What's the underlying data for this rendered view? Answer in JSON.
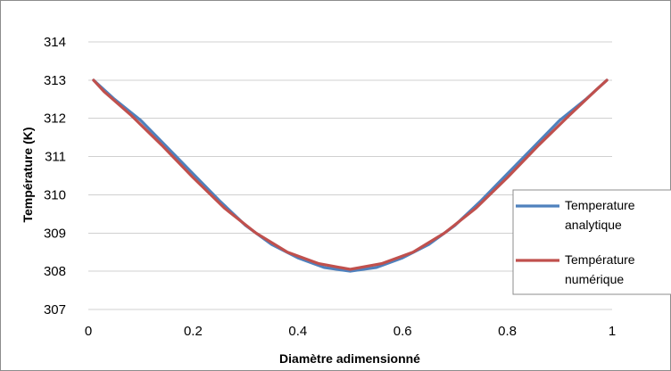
{
  "chart_data": {
    "type": "line",
    "title": "",
    "xlabel": "Diamètre adimensionné",
    "ylabel": "Température (K)",
    "xlim": [
      0,
      1
    ],
    "ylim": [
      307,
      314
    ],
    "xticks": [
      "0",
      "0.2",
      "0.4",
      "0.6",
      "0.8",
      "1"
    ],
    "yticks": [
      "307",
      "308",
      "309",
      "310",
      "311",
      "312",
      "313",
      "314"
    ],
    "grid": true,
    "legend_position": "right",
    "series": [
      {
        "name_lines": [
          "Temperature",
          "analytique"
        ],
        "color": "#4f81bd",
        "x": [
          0.01,
          0.05,
          0.1,
          0.15,
          0.2,
          0.25,
          0.3,
          0.35,
          0.4,
          0.45,
          0.5,
          0.55,
          0.6,
          0.65,
          0.7,
          0.75,
          0.8,
          0.85,
          0.9,
          0.95,
          0.99
        ],
        "y": [
          313.0,
          312.5,
          311.95,
          311.25,
          310.55,
          309.85,
          309.2,
          308.7,
          308.35,
          308.1,
          308.0,
          308.1,
          308.35,
          308.7,
          309.2,
          309.85,
          310.55,
          311.25,
          311.95,
          312.5,
          313.0
        ]
      },
      {
        "name_lines": [
          "Température",
          "numérique"
        ],
        "color": "#c0504d",
        "x": [
          0.01,
          0.03,
          0.08,
          0.14,
          0.2,
          0.26,
          0.32,
          0.38,
          0.44,
          0.5,
          0.56,
          0.62,
          0.68,
          0.74,
          0.8,
          0.86,
          0.92,
          0.97,
          0.99
        ],
        "y": [
          313.0,
          312.7,
          312.1,
          311.3,
          310.45,
          309.65,
          309.0,
          308.5,
          308.2,
          308.05,
          308.2,
          308.5,
          309.0,
          309.65,
          310.45,
          311.3,
          312.1,
          312.75,
          313.0
        ]
      }
    ]
  }
}
